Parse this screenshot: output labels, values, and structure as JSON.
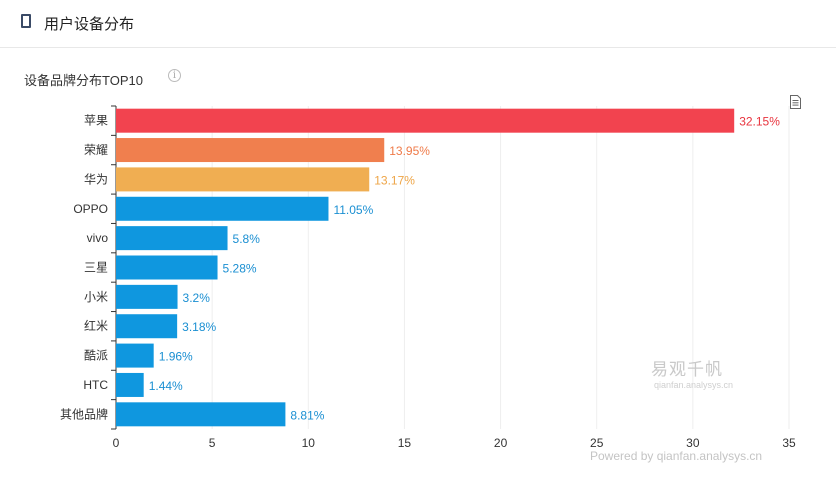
{
  "header": {
    "title": "用户设备分布",
    "icon": "phone-icon"
  },
  "section": {
    "subtitle": "设备品牌分布TOP10",
    "info_icon": "i"
  },
  "watermark": {
    "brand": "易观千帆",
    "domain": "qianfan.analysys.cn"
  },
  "footer": {
    "powered": "Powered by qianfan.analysys.cn"
  },
  "chart_data": {
    "type": "bar",
    "orientation": "horizontal",
    "title": "设备品牌分布TOP10",
    "categories": [
      "苹果",
      "荣耀",
      "华为",
      "OPPO",
      "vivo",
      "三星",
      "小米",
      "红米",
      "酷派",
      "HTC",
      "其他品牌"
    ],
    "values": [
      32.15,
      13.95,
      13.17,
      11.05,
      5.8,
      5.28,
      3.2,
      3.18,
      1.96,
      1.44,
      8.81
    ],
    "labels": [
      "32.15%",
      "13.95%",
      "13.17%",
      "11.05%",
      "5.8%",
      "5.28%",
      "3.2%",
      "3.18%",
      "1.96%",
      "1.44%",
      "8.81%"
    ],
    "colors": [
      "#f2434f",
      "#f07f4e",
      "#f0ae52",
      "#0f97df",
      "#0f97df",
      "#0f97df",
      "#0f97df",
      "#0f97df",
      "#0f97df",
      "#0f97df",
      "#0f97df"
    ],
    "label_colors": [
      "#e8343e",
      "#ef7a48",
      "#eea547",
      "#1a8fd2",
      "#1a8fd2",
      "#1a8fd2",
      "#1a8fd2",
      "#1a8fd2",
      "#1a8fd2",
      "#1a8fd2",
      "#1a8fd2"
    ],
    "xlim": [
      0,
      35
    ],
    "xticks": [
      0,
      5,
      10,
      15,
      20,
      25,
      30,
      35
    ],
    "grid": true,
    "legend": "none"
  }
}
